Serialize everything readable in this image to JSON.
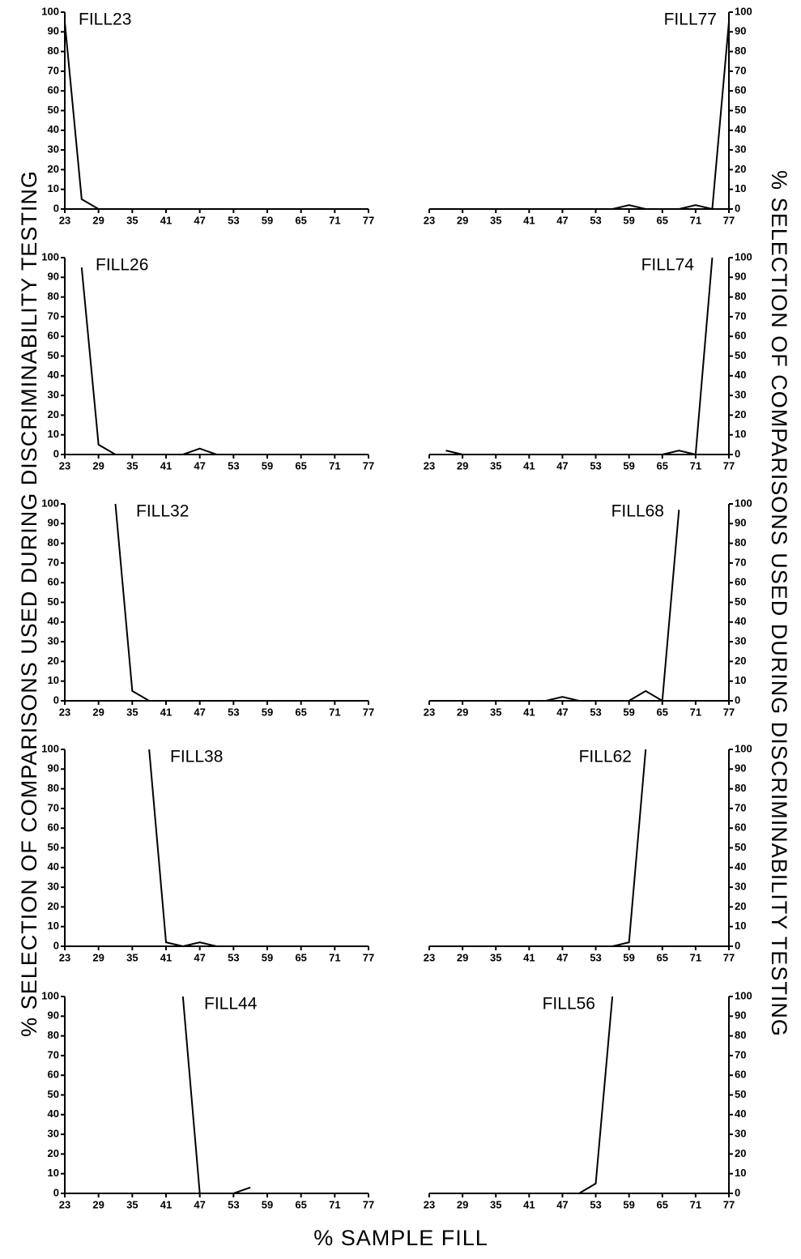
{
  "figure": {
    "ylabel_left": "% SELECTION OF COMPARISONS USED DURING DISCRIMINABILITY TESTING",
    "ylabel_right": "% SELECTION OF COMPARISONS USED DURING DISCRIMINABILITY TESTING",
    "xlabel": "% SAMPLE FILL"
  },
  "chart_data": [
    {
      "type": "line",
      "title": "FILL23",
      "y_axis_side": "left",
      "xlim": [
        23,
        77
      ],
      "ylim": [
        0,
        100
      ],
      "xticks": [
        23,
        29,
        35,
        41,
        47,
        53,
        59,
        65,
        71,
        77
      ],
      "yticks": [
        0,
        10,
        20,
        30,
        40,
        50,
        60,
        70,
        80,
        90,
        100
      ],
      "series": [
        {
          "color": "#000000",
          "x": [
            23,
            26,
            29,
            32,
            35,
            38,
            41,
            44,
            47,
            50,
            53,
            56,
            59,
            62,
            65,
            68,
            71,
            74,
            77
          ],
          "values": [
            95,
            5,
            0,
            0,
            0,
            0,
            0,
            0,
            0,
            0,
            0,
            null,
            null,
            null,
            null,
            null,
            null,
            null,
            null
          ]
        }
      ]
    },
    {
      "type": "line",
      "title": "FILL77",
      "y_axis_side": "right",
      "xlim": [
        23,
        77
      ],
      "ylim": [
        0,
        100
      ],
      "xticks": [
        23,
        29,
        35,
        41,
        47,
        53,
        59,
        65,
        71,
        77
      ],
      "yticks": [
        0,
        10,
        20,
        30,
        40,
        50,
        60,
        70,
        80,
        90,
        100
      ],
      "series": [
        {
          "color": "#000000",
          "x": [
            23,
            26,
            29,
            32,
            35,
            38,
            41,
            44,
            47,
            50,
            53,
            56,
            59,
            62,
            65,
            68,
            71,
            74,
            77
          ],
          "values": [
            0,
            0,
            0,
            0,
            0,
            0,
            0,
            0,
            0,
            0,
            0,
            0,
            2,
            0,
            0,
            0,
            2,
            0,
            95
          ]
        }
      ]
    },
    {
      "type": "line",
      "title": "FILL26",
      "y_axis_side": "left",
      "xlim": [
        23,
        77
      ],
      "ylim": [
        0,
        100
      ],
      "xticks": [
        23,
        29,
        35,
        41,
        47,
        53,
        59,
        65,
        71,
        77
      ],
      "yticks": [
        0,
        10,
        20,
        30,
        40,
        50,
        60,
        70,
        80,
        90,
        100
      ],
      "series": [
        {
          "color": "#000000",
          "x": [
            23,
            26,
            29,
            32,
            35,
            38,
            41,
            44,
            47,
            50,
            53,
            56,
            59,
            62,
            65,
            68,
            71,
            74,
            77
          ],
          "values": [
            null,
            95,
            5,
            0,
            0,
            0,
            0,
            0,
            3,
            0,
            0,
            0,
            0,
            0,
            0,
            0,
            0,
            0,
            null
          ]
        }
      ]
    },
    {
      "type": "line",
      "title": "FILL74",
      "y_axis_side": "right",
      "xlim": [
        23,
        77
      ],
      "ylim": [
        0,
        100
      ],
      "xticks": [
        23,
        29,
        35,
        41,
        47,
        53,
        59,
        65,
        71,
        77
      ],
      "yticks": [
        0,
        10,
        20,
        30,
        40,
        50,
        60,
        70,
        80,
        90,
        100
      ],
      "series": [
        {
          "color": "#000000",
          "x": [
            23,
            26,
            29,
            32,
            35,
            38,
            41,
            44,
            47,
            50,
            53,
            56,
            59,
            62,
            65,
            68,
            71,
            74,
            77
          ],
          "values": [
            null,
            2,
            0,
            0,
            0,
            0,
            0,
            0,
            0,
            0,
            0,
            0,
            0,
            0,
            0,
            2,
            0,
            100,
            null
          ]
        }
      ]
    },
    {
      "type": "line",
      "title": "FILL32",
      "y_axis_side": "left",
      "xlim": [
        23,
        77
      ],
      "ylim": [
        0,
        100
      ],
      "xticks": [
        23,
        29,
        35,
        41,
        47,
        53,
        59,
        65,
        71,
        77
      ],
      "yticks": [
        0,
        10,
        20,
        30,
        40,
        50,
        60,
        70,
        80,
        90,
        100
      ],
      "series": [
        {
          "color": "#000000",
          "x": [
            23,
            26,
            29,
            32,
            35,
            38,
            41,
            44,
            47,
            50,
            53,
            56,
            59,
            62,
            65,
            68,
            71,
            74,
            77
          ],
          "values": [
            null,
            null,
            null,
            100,
            5,
            0,
            0,
            0,
            0,
            0,
            0,
            0,
            0,
            0,
            0,
            0,
            0,
            0,
            null
          ]
        }
      ]
    },
    {
      "type": "line",
      "title": "FILL68",
      "y_axis_side": "right",
      "xlim": [
        23,
        77
      ],
      "ylim": [
        0,
        100
      ],
      "xticks": [
        23,
        29,
        35,
        41,
        47,
        53,
        59,
        65,
        71,
        77
      ],
      "yticks": [
        0,
        10,
        20,
        30,
        40,
        50,
        60,
        70,
        80,
        90,
        100
      ],
      "series": [
        {
          "color": "#000000",
          "x": [
            23,
            26,
            29,
            32,
            35,
            38,
            41,
            44,
            47,
            50,
            53,
            56,
            59,
            62,
            65,
            68,
            71,
            74,
            77
          ],
          "values": [
            0,
            0,
            0,
            0,
            0,
            0,
            0,
            0,
            2,
            0,
            0,
            0,
            0,
            5,
            0,
            97,
            null,
            null,
            null
          ]
        }
      ]
    },
    {
      "type": "line",
      "title": "FILL38",
      "y_axis_side": "left",
      "xlim": [
        23,
        77
      ],
      "ylim": [
        0,
        100
      ],
      "xticks": [
        23,
        29,
        35,
        41,
        47,
        53,
        59,
        65,
        71,
        77
      ],
      "yticks": [
        0,
        10,
        20,
        30,
        40,
        50,
        60,
        70,
        80,
        90,
        100
      ],
      "series": [
        {
          "color": "#000000",
          "x": [
            23,
            26,
            29,
            32,
            35,
            38,
            41,
            44,
            47,
            50,
            53,
            56,
            59,
            62,
            65,
            68,
            71,
            74,
            77
          ],
          "values": [
            null,
            null,
            null,
            null,
            null,
            100,
            2,
            0,
            2,
            0,
            0,
            0,
            0,
            0,
            0,
            0,
            0,
            0,
            null
          ]
        }
      ]
    },
    {
      "type": "line",
      "title": "FILL62",
      "y_axis_side": "right",
      "xlim": [
        23,
        77
      ],
      "ylim": [
        0,
        100
      ],
      "xticks": [
        23,
        29,
        35,
        41,
        47,
        53,
        59,
        65,
        71,
        77
      ],
      "yticks": [
        0,
        10,
        20,
        30,
        40,
        50,
        60,
        70,
        80,
        90,
        100
      ],
      "series": [
        {
          "color": "#000000",
          "x": [
            23,
            26,
            29,
            32,
            35,
            38,
            41,
            44,
            47,
            50,
            53,
            56,
            59,
            62,
            65,
            68,
            71,
            74,
            77
          ],
          "values": [
            0,
            0,
            0,
            0,
            0,
            0,
            0,
            0,
            0,
            0,
            0,
            0,
            2,
            100,
            null,
            null,
            null,
            null,
            null
          ]
        }
      ]
    },
    {
      "type": "line",
      "title": "FILL44",
      "y_axis_side": "left",
      "xlim": [
        23,
        77
      ],
      "ylim": [
        0,
        100
      ],
      "xticks": [
        23,
        29,
        35,
        41,
        47,
        53,
        59,
        65,
        71,
        77
      ],
      "yticks": [
        0,
        10,
        20,
        30,
        40,
        50,
        60,
        70,
        80,
        90,
        100
      ],
      "series": [
        {
          "color": "#000000",
          "x": [
            23,
            26,
            29,
            32,
            35,
            38,
            41,
            44,
            47,
            50,
            53,
            56,
            59,
            62,
            65,
            68,
            71,
            74,
            77
          ],
          "values": [
            null,
            null,
            null,
            null,
            null,
            null,
            null,
            100,
            0,
            0,
            0,
            3,
            null,
            null,
            null,
            null,
            null,
            null,
            null
          ]
        }
      ]
    },
    {
      "type": "line",
      "title": "FILL56",
      "y_axis_side": "right",
      "xlim": [
        23,
        77
      ],
      "ylim": [
        0,
        100
      ],
      "xticks": [
        23,
        29,
        35,
        41,
        47,
        53,
        59,
        65,
        71,
        77
      ],
      "yticks": [
        0,
        10,
        20,
        30,
        40,
        50,
        60,
        70,
        80,
        90,
        100
      ],
      "series": [
        {
          "color": "#000000",
          "x": [
            23,
            26,
            29,
            32,
            35,
            38,
            41,
            44,
            47,
            50,
            53,
            56,
            59,
            62,
            65,
            68,
            71,
            74,
            77
          ],
          "values": [
            0,
            0,
            0,
            0,
            0,
            0,
            0,
            0,
            0,
            0,
            5,
            100,
            null,
            null,
            null,
            null,
            null,
            null,
            null
          ]
        }
      ]
    }
  ]
}
